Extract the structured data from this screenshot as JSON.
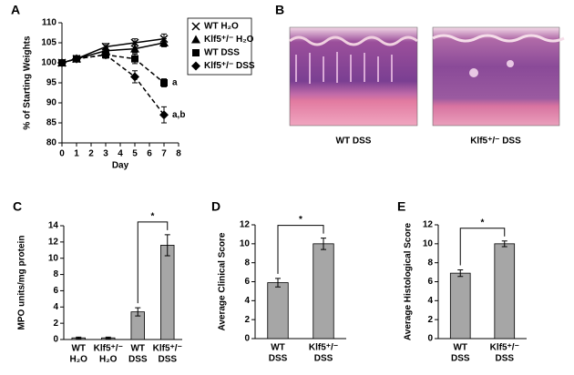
{
  "chart_data": [
    {
      "type": "line",
      "panel": "A",
      "ylabel": "% of Starting Weights",
      "xlabel": "Day",
      "x": [
        0,
        1,
        3,
        5,
        7
      ],
      "xlim": [
        0,
        8
      ],
      "xticks": [
        0,
        1,
        2,
        3,
        4,
        5,
        6,
        7,
        8
      ],
      "ylim": [
        80,
        110
      ],
      "yticks": [
        80,
        85,
        90,
        95,
        100,
        105,
        110
      ],
      "series": [
        {
          "name": "WT H₂O",
          "color": "#000000",
          "marker": "x",
          "dash": "solid",
          "values": [
            100,
            101,
            104,
            105,
            106
          ],
          "errors": [
            0.3,
            0.5,
            0.8,
            1,
            1.2
          ]
        },
        {
          "name": "Klf5⁺/⁻ H₂O",
          "color": "#000000",
          "marker": "triangle",
          "dash": "solid",
          "values": [
            100,
            101,
            103,
            103.5,
            105
          ],
          "errors": [
            0.3,
            0.5,
            0.8,
            1,
            1
          ]
        },
        {
          "name": "WT DSS",
          "color": "#000000",
          "marker": "square",
          "dash": "dashed",
          "values": [
            100,
            101,
            102,
            101,
            95
          ],
          "errors": [
            0.3,
            0.5,
            0.8,
            1.2,
            1
          ],
          "annotation": "a"
        },
        {
          "name": "Klf5⁺/⁻ DSS",
          "color": "#000000",
          "marker": "diamond",
          "dash": "dashed",
          "values": [
            100,
            101,
            102,
            96.5,
            87
          ],
          "errors": [
            0.3,
            0.5,
            0.8,
            1.5,
            2
          ],
          "annotation": "a,b"
        }
      ]
    },
    {
      "type": "bar",
      "panel": "C",
      "ylabel": "MPO units/mg protein",
      "color": "#a6a6a6",
      "categories": [
        [
          "WT",
          "H₂O"
        ],
        [
          "Klf5⁺/⁻",
          "H₂O"
        ],
        [
          "WT",
          "DSS"
        ],
        [
          "Klf5⁺/⁻",
          "DSS"
        ]
      ],
      "values": [
        0.2,
        0.2,
        3.4,
        11.6
      ],
      "errors": [
        0.1,
        0.1,
        0.5,
        1.3
      ],
      "ylim": [
        0,
        14
      ],
      "yticks": [
        0,
        2,
        4,
        6,
        8,
        10,
        12,
        14
      ],
      "significance": "*"
    },
    {
      "type": "bar",
      "panel": "D",
      "ylabel": "Average Clinical Score",
      "color": "#a6a6a6",
      "categories": [
        [
          "WT",
          "DSS"
        ],
        [
          "Klf5⁺/⁻",
          "DSS"
        ]
      ],
      "values": [
        5.9,
        10.0
      ],
      "errors": [
        0.45,
        0.6
      ],
      "ylim": [
        0,
        12
      ],
      "yticks": [
        0,
        2,
        4,
        6,
        8,
        10,
        12
      ],
      "significance": "*"
    },
    {
      "type": "bar",
      "panel": "E",
      "ylabel": "Average Histological Score",
      "color": "#a6a6a6",
      "categories": [
        [
          "WT",
          "DSS"
        ],
        [
          "Klf5⁺/⁻",
          "DSS"
        ]
      ],
      "values": [
        6.9,
        10.0
      ],
      "errors": [
        0.35,
        0.3
      ],
      "ylim": [
        0,
        12
      ],
      "yticks": [
        0,
        2,
        4,
        6,
        8,
        10,
        12
      ],
      "significance": "*"
    }
  ],
  "histology": {
    "panel": "B",
    "images": [
      {
        "caption": "WT DSS"
      },
      {
        "caption": "Klf5⁺/⁻ DSS"
      }
    ]
  }
}
